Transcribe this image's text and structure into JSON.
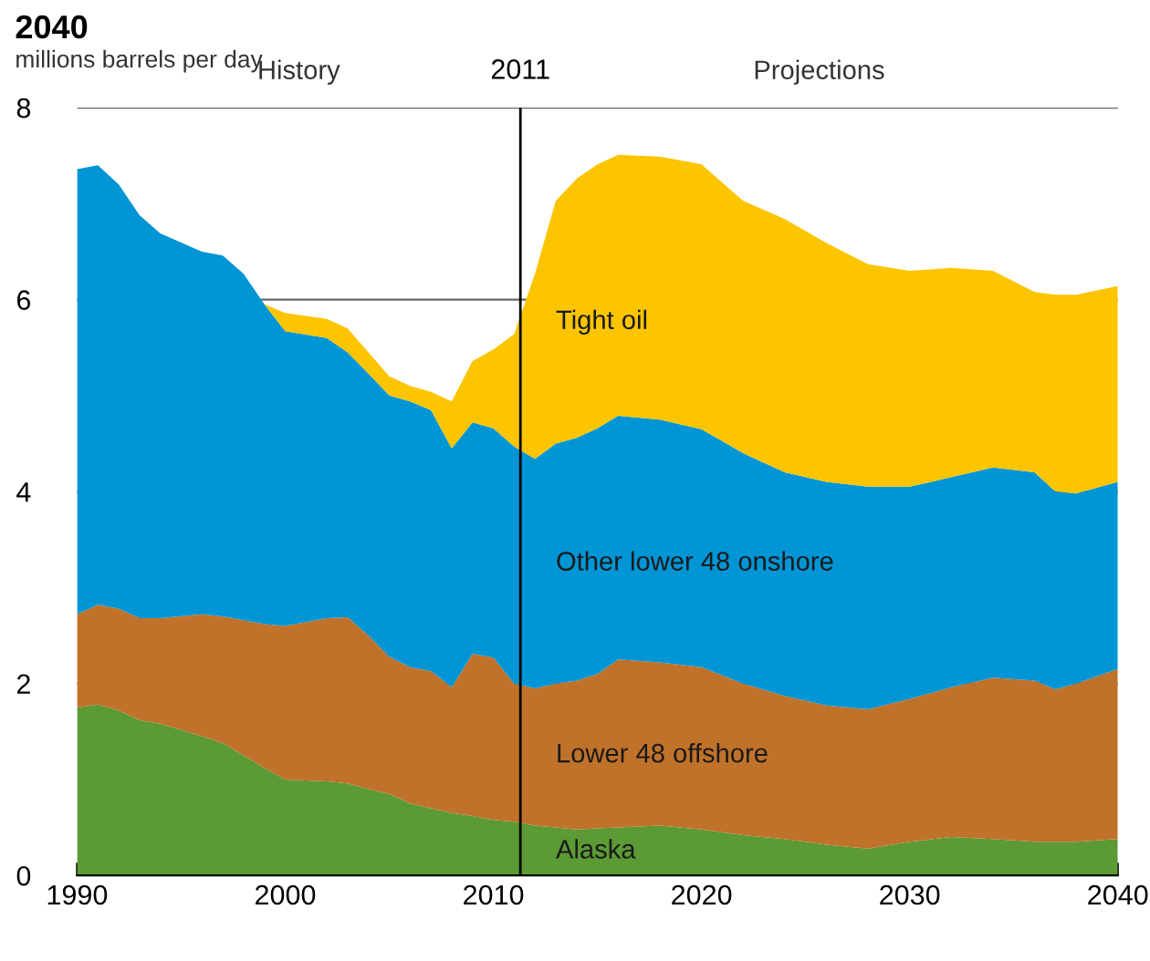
{
  "chart_data": {
    "type": "area",
    "stacked": true,
    "title": "2040",
    "ylabel": "millions barrels per day",
    "x": [
      1990,
      1991,
      1992,
      1993,
      1994,
      1996,
      1997,
      1998,
      1999,
      2000,
      2002,
      2003,
      2004,
      2005,
      2006,
      2007,
      2008,
      2009,
      2010,
      2011,
      2012,
      2013,
      2014,
      2015,
      2016,
      2018,
      2020,
      2022,
      2024,
      2026,
      2028,
      2030,
      2032,
      2034,
      2036,
      2037,
      2038,
      2040
    ],
    "series": [
      {
        "name": "Alaska",
        "color": "#5b9a35",
        "values": [
          1.75,
          1.78,
          1.72,
          1.62,
          1.58,
          1.45,
          1.38,
          1.25,
          1.12,
          1.0,
          0.98,
          0.96,
          0.9,
          0.85,
          0.75,
          0.7,
          0.65,
          0.62,
          0.58,
          0.56,
          0.52,
          0.5,
          0.48,
          0.49,
          0.5,
          0.52,
          0.48,
          0.42,
          0.38,
          0.32,
          0.28,
          0.35,
          0.4,
          0.38,
          0.35,
          0.35,
          0.35,
          0.38
        ]
      },
      {
        "name": "Lower 48 offshore",
        "color": "#c0722a",
        "values": [
          0.97,
          1.04,
          1.06,
          1.06,
          1.1,
          1.27,
          1.32,
          1.41,
          1.5,
          1.6,
          1.7,
          1.73,
          1.6,
          1.43,
          1.42,
          1.43,
          1.31,
          1.69,
          1.69,
          1.44,
          1.43,
          1.5,
          1.55,
          1.61,
          1.75,
          1.7,
          1.69,
          1.58,
          1.49,
          1.45,
          1.45,
          1.49,
          1.56,
          1.68,
          1.68,
          1.59,
          1.65,
          1.77
        ]
      },
      {
        "name": "Other lower 48 onshore",
        "color": "#0095d5",
        "values": [
          4.64,
          4.58,
          4.42,
          4.2,
          4.01,
          3.78,
          3.76,
          3.61,
          3.33,
          3.07,
          2.92,
          2.76,
          2.73,
          2.72,
          2.77,
          2.72,
          2.49,
          2.41,
          2.39,
          2.47,
          2.39,
          2.5,
          2.53,
          2.56,
          2.54,
          2.53,
          2.48,
          2.4,
          2.33,
          2.33,
          2.32,
          2.21,
          2.19,
          2.19,
          2.17,
          2.06,
          1.98,
          1.95
        ]
      },
      {
        "name": "Tight oil",
        "color": "#fcc500",
        "values": [
          0,
          0,
          0,
          0,
          0,
          0,
          0,
          0,
          0,
          0.19,
          0.2,
          0.25,
          0.22,
          0.2,
          0.16,
          0.19,
          0.49,
          0.64,
          0.82,
          1.17,
          1.93,
          2.53,
          2.7,
          2.75,
          2.72,
          2.74,
          2.76,
          2.63,
          2.64,
          2.49,
          2.32,
          2.25,
          2.18,
          2.05,
          1.88,
          2.05,
          2.07,
          2.04
        ]
      }
    ],
    "xlim": [
      1990,
      2040
    ],
    "xticks": [
      1990,
      2000,
      2010,
      2020,
      2030,
      2040
    ],
    "ylim": [
      0,
      8
    ],
    "yticks": [
      0,
      2,
      4,
      6,
      8
    ],
    "grid": "y",
    "ref_lines": [
      {
        "axis": "x",
        "value": 2011.3,
        "label": "2011",
        "color": "#000000"
      }
    ],
    "annotations": [
      "History",
      "Projections"
    ]
  }
}
